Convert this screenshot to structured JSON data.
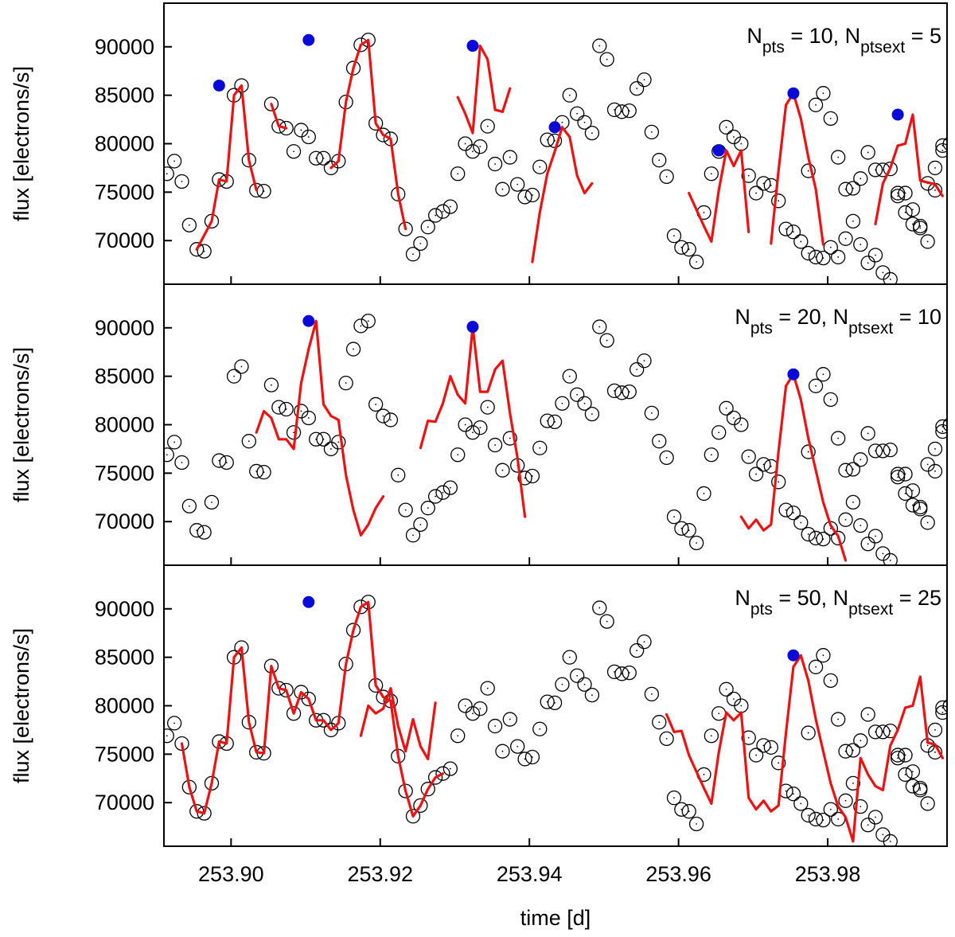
{
  "chart_data": {
    "type": "scatter",
    "layout": "3 vertically stacked panels sharing the x axis",
    "xlabel": "time [d]",
    "ylabel": "flux [electrons/s]",
    "xlim": [
      253.891,
      253.996
    ],
    "ylim": [
      65500,
      94500
    ],
    "xticks": [
      253.9,
      253.92,
      253.94,
      253.96,
      253.98
    ],
    "xtick_labels": [
      "253.90",
      "253.92",
      "253.94",
      "253.96",
      "253.98"
    ],
    "yticks": [
      70000,
      75000,
      80000,
      85000,
      90000
    ],
    "ytick_labels": [
      "70000",
      "75000",
      "80000",
      "85000",
      "90000"
    ],
    "colors": {
      "points": "#000000",
      "fit": "#ee1111",
      "peaks": "#0a0ad8",
      "frame": "#000000"
    },
    "observations": {
      "name": "flux measurements (open circles)",
      "time": [
        253.8914,
        253.8924,
        253.8934,
        253.8944,
        253.8954,
        253.8964,
        253.8974,
        253.8984,
        253.8994,
        253.9004,
        253.9014,
        253.9024,
        253.9034,
        253.9044,
        253.9054,
        253.9064,
        253.9074,
        253.9084,
        253.9094,
        253.9104,
        253.9114,
        253.9124,
        253.9134,
        253.9144,
        253.9154,
        253.9164,
        253.9174,
        253.9184,
        253.9194,
        253.9204,
        253.9214,
        253.9224,
        253.9234,
        253.9244,
        253.9254,
        253.9264,
        253.9274,
        253.9284,
        253.9294,
        253.9304,
        253.9314,
        253.9324,
        253.9334,
        253.9344,
        253.9354,
        253.9364,
        253.9374,
        253.9384,
        253.9394,
        253.9404,
        253.9414,
        253.9424,
        253.9434,
        253.9444,
        253.9454,
        253.9464,
        253.9474,
        253.9484,
        253.9494,
        253.9504,
        253.9514,
        253.9524,
        253.9534,
        253.9544,
        253.9554,
        253.9564,
        253.9574,
        253.9584,
        253.9594,
        253.9604,
        253.9614,
        253.9624,
        253.9634,
        253.9644,
        253.9654,
        253.9664,
        253.9674,
        253.9684,
        253.9694,
        253.9704,
        253.9714,
        253.9724,
        253.9734,
        253.9744,
        253.9754,
        253.9764,
        253.9774,
        253.9784,
        253.9794,
        253.9804,
        253.9814,
        253.9824,
        253.9834,
        253.9844,
        253.9854,
        253.9864,
        253.9874,
        253.9884,
        253.9894,
        253.9904,
        253.9914,
        253.9924,
        253.9934,
        253.9944,
        253.9954
      ],
      "flux": [
        76900,
        78200,
        76100,
        71600,
        69100,
        68900,
        72000,
        76300,
        76100,
        85000,
        86000,
        78300,
        75200,
        75100,
        84100,
        81800,
        81600,
        79200,
        81400,
        80700,
        78500,
        78500,
        77500,
        78200,
        84300,
        87800,
        90200,
        90700,
        82100,
        80900,
        80500,
        74800,
        71200,
        68600,
        69700,
        71400,
        72600,
        73000,
        73500,
        76900,
        80000,
        79200,
        79700,
        81800,
        77900,
        75300,
        78600,
        75800,
        74500,
        74700,
        77600,
        80400,
        80300,
        82200,
        85000,
        83100,
        82200,
        81100,
        90100,
        88700,
        83500,
        83300,
        83400,
        85700,
        86600,
        81200,
        78300,
        76600,
        70500,
        69300,
        69100,
        67800,
        72900,
        76900,
        79200,
        81700,
        80700,
        80000,
        76700,
        74900,
        75900,
        75700,
        74100,
        71200,
        70900,
        69900,
        68700,
        68300,
        68200,
        69300,
        68300,
        70200,
        75400,
        76400,
        79100,
        77300,
        77300,
        77400,
        74900,
        74900,
        73200,
        71500,
        69900,
        75200,
        79300
      ],
      "time_cont": [
        253.9774,
        253.9784,
        253.9794,
        253.9804,
        253.9814,
        253.9824,
        253.9834,
        253.9844,
        253.9854,
        253.9864,
        253.9874,
        253.9884,
        253.9894,
        253.9904,
        253.9914,
        253.9924,
        253.9934,
        253.9944,
        253.9954,
        253.9964
      ],
      "flux_cont": [
        77200,
        84000,
        85200,
        82600,
        78600,
        75300,
        72000,
        69600,
        67700,
        68500,
        66700,
        66000,
        74600,
        72900,
        71700,
        71300,
        75900,
        77500,
        79800,
        80000
      ]
    },
    "panels": [
      {
        "label_main": "N",
        "label_sub1": "pts",
        "label_mid": " = 10, N",
        "label_sub2": "ptsext",
        "label_end": " = 5",
        "fit_segments": [
          {
            "x": [
              253.8954,
              253.8974,
              253.8984,
              253.8994,
              253.9004
            ],
            "y": [
              69100,
              72000,
              76300,
              76100,
              85000
            ]
          },
          {
            "x": [
              253.9004,
              253.9014,
              253.9024,
              253.9034
            ],
            "y": [
              85000,
              86000,
              78300,
              75200
            ]
          },
          {
            "x": [
              253.9054,
              253.9064,
              253.9074
            ],
            "y": [
              84100,
              81800,
              81600
            ]
          },
          {
            "x": [
              253.9134,
              253.9144,
              253.9154,
              253.9164,
              253.9174,
              253.9184,
              253.9194,
              253.9204,
              253.9214,
              253.9224,
              253.9234
            ],
            "y": [
              77500,
              78200,
              84300,
              87800,
              90200,
              90700,
              82100,
              80900,
              80500,
              74800,
              71200
            ]
          },
          {
            "x": [
              253.9304,
              253.9314,
              253.9324,
              253.9334,
              253.9344,
              253.9354,
              253.9364
            ],
            "y": [
              84800,
              83100,
              81100,
              90100,
              88700,
              83500,
              83300
            ]
          },
          {
            "x": [
              253.9364,
              253.9374
            ],
            "y": [
              83300,
              85700
            ]
          },
          {
            "x": [
              253.9404,
              253.9414,
              253.9424,
              253.9434,
              253.9444,
              253.9454,
              253.9464,
              253.9474,
              253.9484
            ],
            "y": [
              67800,
              72900,
              76900,
              79200,
              81700,
              80700,
              76700,
              74900,
              75900
            ]
          },
          {
            "x": [
              253.9614,
              253.9624,
              253.9634,
              253.9644,
              253.9654,
              253.9664,
              253.9674,
              253.9684,
              253.9694
            ],
            "y": [
              74900,
              73200,
              71500,
              69900,
              75200,
              79300,
              77700,
              79300,
              70900
            ]
          },
          {
            "x": [
              253.9724,
              253.9734,
              253.9744,
              253.9754,
              253.9764,
              253.9774,
              253.9784,
              253.9794
            ],
            "y": [
              69700,
              77200,
              84000,
              85200,
              82600,
              78600,
              75300,
              69600
            ]
          },
          {
            "x": [
              253.9864,
              253.9874,
              253.9884,
              253.9894,
              253.9904,
              253.9914,
              253.9924,
              253.9934,
              253.9944,
              253.9954
            ],
            "y": [
              71700,
              75900,
              77500,
              79800,
              80000,
              83000,
              76200,
              76000,
              75800,
              74600
            ]
          }
        ],
        "peaks": {
          "x": [
            253.8984,
            253.9104,
            253.9324,
            253.9434,
            253.9654,
            253.9754,
            253.9894
          ],
          "y": [
            86000,
            90700,
            90100,
            81700,
            79300,
            85200,
            83000
          ]
        }
      },
      {
        "label_main": "N",
        "label_sub1": "pts",
        "label_mid": " = 20, N",
        "label_sub2": "ptsext",
        "label_end": " = 10",
        "fit_segments": [
          {
            "x": [
              253.9034,
              253.9044,
              253.9054,
              253.9064,
              253.9074,
              253.9084,
              253.9094,
              253.9104,
              253.9114,
              253.9124,
              253.9134,
              253.9144,
              253.9154,
              253.9164,
              253.9174,
              253.9184,
              253.9194,
              253.9204
            ],
            "y": [
              79200,
              81400,
              80700,
              78500,
              78500,
              77500,
              84300,
              87800,
              90700,
              82100,
              80900,
              80500,
              74800,
              71200,
              68600,
              69700,
              71400,
              72600
            ]
          },
          {
            "x": [
              253.9254,
              253.9264,
              253.9274,
              253.9284,
              253.9294,
              253.9304,
              253.9314,
              253.9324,
              253.9334,
              253.9344,
              253.9354,
              253.9364,
              253.9374,
              253.9384,
              253.9394
            ],
            "y": [
              77600,
              80400,
              80300,
              82200,
              85000,
              83100,
              82200,
              90100,
              83400,
              83400,
              85700,
              86600,
              81200,
              76600,
              70500
            ]
          },
          {
            "x": [
              253.9684,
              253.9694,
              253.9704,
              253.9714,
              253.9724,
              253.9734,
              253.9744,
              253.9754,
              253.9764,
              253.9774,
              253.9784,
              253.9794,
              253.9804,
              253.9814,
              253.9824
            ],
            "y": [
              70500,
              69300,
              70200,
              69100,
              69700,
              77200,
              84000,
              85200,
              82600,
              78600,
              75300,
              72000,
              69600,
              68500,
              66000
            ]
          }
        ],
        "peaks": {
          "x": [
            253.9104,
            253.9324,
            253.9754
          ],
          "y": [
            90700,
            90100,
            85200
          ]
        }
      },
      {
        "label_main": "N",
        "label_sub1": "pts",
        "label_mid": " = 50, N",
        "label_sub2": "ptsext",
        "label_end": " = 25",
        "fit_segments": [
          {
            "x": [
              253.8934,
              253.8944,
              253.8954,
              253.8964,
              253.8974,
              253.8984,
              253.8994,
              253.9004,
              253.9014,
              253.9024,
              253.9034,
              253.9044,
              253.9054,
              253.9064,
              253.9074,
              253.9084,
              253.9094,
              253.9104,
              253.9114,
              253.9124,
              253.9134,
              253.9144,
              253.9154,
              253.9164,
              253.9174,
              253.9184,
              253.9194,
              253.9204,
              253.9214,
              253.9224,
              253.9234,
              253.9244,
              253.9254,
              253.9264,
              253.9274,
              253.9284
            ],
            "y": [
              76100,
              71600,
              69100,
              68900,
              72000,
              76300,
              76100,
              85000,
              86000,
              78300,
              75200,
              75100,
              84100,
              81800,
              81600,
              79200,
              81400,
              80700,
              78500,
              78500,
              77500,
              78200,
              84300,
              87800,
              90200,
              90700,
              82100,
              80900,
              80500,
              74800,
              71200,
              68600,
              69700,
              71400,
              72600,
              73000
            ]
          },
          {
            "x": [
              253.9174,
              253.9184,
              253.9194,
              253.9204,
              253.9214,
              253.9224,
              253.9234,
              253.9244,
              253.9254,
              253.9264,
              253.9274
            ],
            "y": [
              76900,
              80000,
              79200,
              79700,
              81800,
              77900,
              75300,
              78600,
              75800,
              74500,
              80300
            ]
          },
          {
            "x": [
              253.9584,
              253.9594,
              253.9604,
              253.9614,
              253.9624,
              253.9634,
              253.9644,
              253.9654,
              253.9664,
              253.9674,
              253.9684,
              253.9694,
              253.9704,
              253.9714,
              253.9724,
              253.9734,
              253.9744,
              253.9754,
              253.9764,
              253.9774,
              253.9784,
              253.9794,
              253.9804,
              253.9814,
              253.9824,
              253.9834,
              253.9844,
              253.9854,
              253.9864,
              253.9874,
              253.9884,
              253.9894,
              253.9904,
              253.9914,
              253.9924,
              253.9934,
              253.9944,
              253.9954
            ],
            "y": [
              79100,
              77300,
              77400,
              74900,
              73200,
              71500,
              69900,
              75200,
              79300,
              78500,
              79300,
              70500,
              69300,
              70200,
              69100,
              69700,
              77200,
              84000,
              85200,
              82600,
              78600,
              75300,
              72000,
              69600,
              68500,
              66000,
              74600,
              72900,
              71700,
              71300,
              75900,
              77500,
              79800,
              80000,
              83000,
              76200,
              76000,
              74600
            ]
          }
        ],
        "peaks": {
          "x": [
            253.9104,
            253.9754
          ],
          "y": [
            90700,
            85200
          ]
        }
      }
    ]
  }
}
